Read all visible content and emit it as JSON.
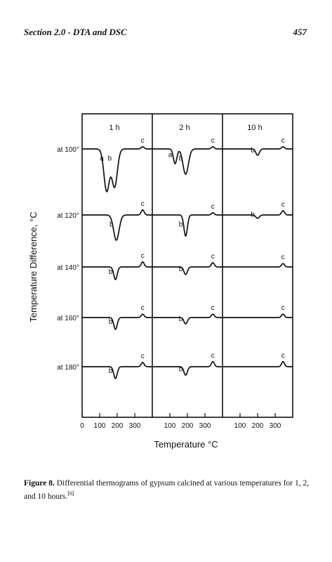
{
  "header": {
    "section": "Section 2.0 - DTA and DSC",
    "page_number": "457"
  },
  "chart_data": {
    "type": "line",
    "ylabel": "Temperature Difference, °C",
    "xlabel": "Temperature °C",
    "panels": [
      {
        "label": "1 h",
        "ticks": [
          0,
          100,
          200,
          300
        ],
        "tick_labels": [
          "0",
          "100",
          "200",
          "300"
        ],
        "xlim": [
          0,
          400
        ]
      },
      {
        "label": "2 h",
        "ticks": [
          100,
          200,
          300
        ],
        "tick_labels": [
          "100",
          "200",
          "300"
        ],
        "xlim": [
          0,
          400
        ]
      },
      {
        "label": "10 h",
        "ticks": [
          100,
          200,
          300
        ],
        "tick_labels": [
          "100",
          "200",
          "300"
        ],
        "xlim": [
          0,
          400
        ]
      }
    ],
    "rows": [
      {
        "label": "at 100°",
        "peaks": [
          {
            "panel": 0,
            "x": 140,
            "depth": 1.0,
            "letter": "a"
          },
          {
            "panel": 0,
            "x": 185,
            "depth": 0.9,
            "letter": "b"
          },
          {
            "panel": 0,
            "x": 345,
            "depth": -0.05,
            "letter": "c"
          },
          {
            "panel": 1,
            "x": 130,
            "depth": 0.35,
            "letter": "a"
          },
          {
            "panel": 1,
            "x": 190,
            "depth": 0.6,
            "letter": "b"
          },
          {
            "panel": 1,
            "x": 345,
            "depth": -0.05,
            "letter": "c"
          },
          {
            "panel": 2,
            "x": 200,
            "depth": 0.15,
            "letter": "b"
          },
          {
            "panel": 2,
            "x": 345,
            "depth": -0.05,
            "letter": "c"
          }
        ]
      },
      {
        "label": "at 120°",
        "peaks": [
          {
            "panel": 0,
            "x": 195,
            "depth": 0.6,
            "letter": "b"
          },
          {
            "panel": 0,
            "x": 345,
            "depth": -0.12,
            "letter": "c"
          },
          {
            "panel": 1,
            "x": 190,
            "depth": 0.5,
            "letter": "b"
          },
          {
            "panel": 1,
            "x": 345,
            "depth": -0.05,
            "letter": "c"
          },
          {
            "panel": 2,
            "x": 200,
            "depth": 0.08,
            "letter": "b"
          },
          {
            "panel": 2,
            "x": 345,
            "depth": -0.1,
            "letter": "c"
          }
        ]
      },
      {
        "label": "at 140°",
        "peaks": [
          {
            "panel": 0,
            "x": 190,
            "depth": 0.3,
            "letter": "b"
          },
          {
            "panel": 0,
            "x": 345,
            "depth": -0.12,
            "letter": "c"
          },
          {
            "panel": 1,
            "x": 190,
            "depth": 0.18,
            "letter": "b"
          },
          {
            "panel": 1,
            "x": 345,
            "depth": -0.1,
            "letter": "c"
          },
          {
            "panel": 2,
            "x": 345,
            "depth": -0.08,
            "letter": "c"
          }
        ]
      },
      {
        "label": "at 160°",
        "peaks": [
          {
            "panel": 0,
            "x": 190,
            "depth": 0.28,
            "letter": "b"
          },
          {
            "panel": 0,
            "x": 345,
            "depth": -0.08,
            "letter": "c"
          },
          {
            "panel": 1,
            "x": 190,
            "depth": 0.15,
            "letter": "b"
          },
          {
            "panel": 1,
            "x": 345,
            "depth": -0.08,
            "letter": "c"
          },
          {
            "panel": 2,
            "x": 345,
            "depth": -0.08,
            "letter": "c"
          }
        ]
      },
      {
        "label": "at 180°",
        "peaks": [
          {
            "panel": 0,
            "x": 190,
            "depth": 0.28,
            "letter": "b"
          },
          {
            "panel": 0,
            "x": 345,
            "depth": -0.1,
            "letter": "c"
          },
          {
            "panel": 1,
            "x": 190,
            "depth": 0.2,
            "letter": "b"
          },
          {
            "panel": 1,
            "x": 345,
            "depth": -0.12,
            "letter": "c"
          },
          {
            "panel": 2,
            "x": 345,
            "depth": -0.12,
            "letter": "c"
          }
        ]
      }
    ]
  },
  "caption": {
    "label": "Figure 8.",
    "text": " Differential thermograms of gypsum calcined at various temperatures for 1, 2, and 10 hours.",
    "ref": "[6]"
  }
}
